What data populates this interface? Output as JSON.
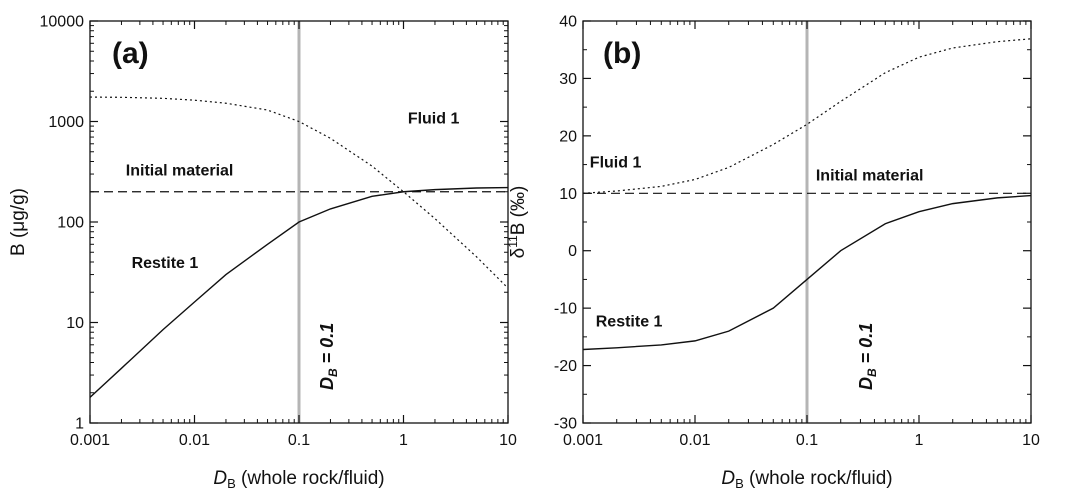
{
  "chart_data": [
    {
      "type": "line",
      "panel_label": "(a)",
      "xlabel_main": "D",
      "xlabel_sub": "B",
      "xlabel_rest": " (whole rock/fluid)",
      "ylabel": "B (μg/g)",
      "xscale": "log",
      "yscale": "log",
      "xlim": [
        0.001,
        10
      ],
      "ylim": [
        1,
        10000
      ],
      "xticks": [
        0.001,
        0.01,
        0.1,
        1,
        10
      ],
      "xtick_labels": [
        "0.001",
        "0.01",
        "0.1",
        "1",
        "10"
      ],
      "yticks": [
        1,
        10,
        100,
        1000,
        10000
      ],
      "ytick_labels": [
        "1",
        "10",
        "100",
        "1000",
        "10000"
      ],
      "grid": false,
      "series": [
        {
          "name": "Fluid 1",
          "style": "dotted",
          "x": [
            0.001,
            0.002,
            0.005,
            0.01,
            0.02,
            0.05,
            0.1,
            0.2,
            0.5,
            1,
            2,
            5,
            10
          ],
          "y": [
            1750,
            1740,
            1700,
            1630,
            1520,
            1300,
            1000,
            680,
            360,
            200,
            108,
            45,
            22
          ]
        },
        {
          "name": "Restite 1",
          "style": "solid",
          "x": [
            0.001,
            0.002,
            0.005,
            0.01,
            0.02,
            0.05,
            0.1,
            0.2,
            0.5,
            1,
            2,
            5,
            10
          ],
          "y": [
            1.8,
            3.5,
            8.5,
            16,
            30,
            60,
            100,
            135,
            180,
            200,
            210,
            218,
            220
          ]
        },
        {
          "name": "Initial material",
          "style": "dashed",
          "x": [
            0.001,
            10
          ],
          "y": [
            200,
            200
          ]
        }
      ],
      "vline": {
        "x": 0.1,
        "label_main": "D",
        "label_sub": "B",
        "label_rest": " = 0.1",
        "color": "#b5b5b5"
      },
      "annotations": [
        {
          "text": "Fluid 1",
          "x": 1.1,
          "y": 950
        },
        {
          "text": "Initial material",
          "x": 0.0022,
          "y": 290
        },
        {
          "text": "Restite 1",
          "x": 0.0025,
          "y": 35
        }
      ]
    },
    {
      "type": "line",
      "panel_label": "(b)",
      "xlabel_main": "D",
      "xlabel_sub": "B",
      "xlabel_rest": " (whole rock/fluid)",
      "ylabel_pre": "δ",
      "ylabel_sup": "11",
      "ylabel_rest": "B (‰)",
      "xscale": "log",
      "yscale": "linear",
      "xlim": [
        0.001,
        10
      ],
      "ylim": [
        -30,
        40
      ],
      "xticks": [
        0.001,
        0.01,
        0.1,
        1,
        10
      ],
      "xtick_labels": [
        "0.001",
        "0.01",
        "0.1",
        "1",
        "10"
      ],
      "yticks": [
        -30,
        -20,
        -10,
        0,
        10,
        20,
        30,
        40
      ],
      "ytick_labels": [
        "-30",
        "-20",
        "-10",
        "0",
        "10",
        "20",
        "30",
        "40"
      ],
      "grid": false,
      "series": [
        {
          "name": "Fluid 1",
          "style": "dotted",
          "x": [
            0.001,
            0.002,
            0.005,
            0.01,
            0.02,
            0.05,
            0.1,
            0.2,
            0.5,
            1,
            2,
            5,
            10
          ],
          "y": [
            10,
            10.4,
            11.2,
            12.4,
            14.5,
            18.5,
            22,
            26,
            31,
            33.7,
            35.3,
            36.4,
            36.9
          ]
        },
        {
          "name": "Restite 1",
          "style": "solid",
          "x": [
            0.001,
            0.002,
            0.005,
            0.01,
            0.02,
            0.05,
            0.1,
            0.2,
            0.5,
            1,
            2,
            5,
            10
          ],
          "y": [
            -17.2,
            -16.9,
            -16.4,
            -15.7,
            -14,
            -10,
            -5,
            0,
            4.7,
            6.8,
            8.2,
            9.2,
            9.6
          ]
        },
        {
          "name": "Initial material",
          "style": "dashed",
          "x": [
            0.001,
            10
          ],
          "y": [
            10,
            10
          ]
        }
      ],
      "vline": {
        "x": 0.1,
        "label_main": "D",
        "label_sub": "B",
        "label_rest": " = 0.1",
        "color": "#b5b5b5"
      },
      "annotations": [
        {
          "text": "Fluid 1",
          "x": 0.00115,
          "y": 14.5
        },
        {
          "text": "Initial material",
          "x": 0.12,
          "y": 12.2
        },
        {
          "text": "Restite 1",
          "x": 0.0013,
          "y": -13.2
        }
      ]
    }
  ]
}
